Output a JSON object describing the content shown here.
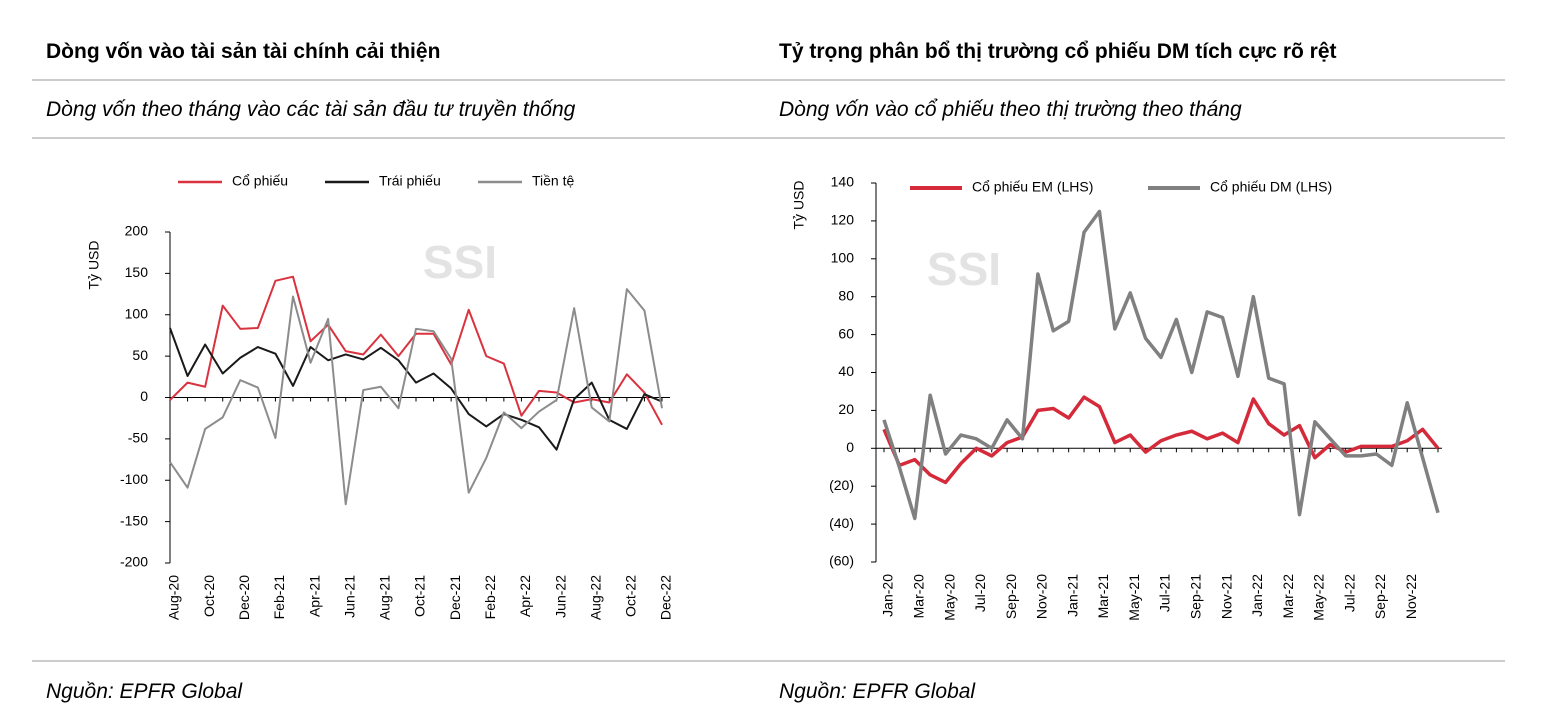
{
  "chart_data": [
    {
      "type": "line",
      "title": "Dòng vốn vào tài sản tài chính cải thiện",
      "subtitle": "Dòng vốn theo tháng vào các tài sản đầu tư truyền thống",
      "source": "Nguồn: EPFR Global",
      "watermark": "SSI",
      "y_label": "Tỷ USD",
      "legend": "top",
      "categories": [
        "Aug-20",
        null,
        "Oct-20",
        null,
        "Dec-20",
        null,
        "Feb-21",
        null,
        "Apr-21",
        null,
        "Jun-21",
        null,
        "Aug-21",
        null,
        "Oct-21",
        null,
        "Dec-21",
        null,
        "Feb-22",
        null,
        "Apr-22",
        null,
        "Jun-22",
        null,
        "Aug-22",
        null,
        "Oct-22",
        null,
        "Dec-22"
      ],
      "series": [
        {
          "name": "Cổ phiếu",
          "color": "#d9333f",
          "values": [
            -3,
            18,
            13,
            111,
            83,
            84,
            141,
            146,
            68,
            88,
            56,
            52,
            76,
            50,
            77,
            77,
            40,
            106,
            50,
            41,
            -22,
            8,
            6,
            -6,
            -2,
            -6,
            28,
            6,
            -33
          ]
        },
        {
          "name": "Trái phiếu",
          "color": "#1a1a1a",
          "values": [
            84,
            26,
            64,
            29,
            48,
            61,
            53,
            14,
            61,
            45,
            52,
            46,
            60,
            45,
            18,
            29,
            11,
            -20,
            -35,
            -20,
            -27,
            -36,
            -63,
            -2,
            18,
            -27,
            -38,
            4,
            -5
          ]
        },
        {
          "name": "Tiền tệ",
          "color": "#8c8c8c",
          "values": [
            -78,
            -109,
            -38,
            -24,
            21,
            12,
            -49,
            122,
            42,
            95,
            -129,
            9,
            13,
            -13,
            83,
            80,
            47,
            -115,
            -73,
            -18,
            -37,
            -17,
            -3,
            108,
            -12,
            -29,
            131,
            105,
            -13
          ]
        }
      ],
      "ylim": [
        -200,
        200
      ],
      "yticks": [
        -200,
        -150,
        -100,
        -50,
        0,
        50,
        100,
        150,
        200
      ]
    },
    {
      "type": "line",
      "title": "Tỷ trọng phân bổ thị trường cổ phiếu DM tích cực rõ rệt",
      "subtitle": "Dòng vốn vào cổ phiếu theo thị trường theo tháng",
      "source": "Nguồn: EPFR Global",
      "watermark": "SSI",
      "y_label": "Tỷ USD",
      "legend": "top",
      "categories": [
        "Jan-20",
        null,
        "Mar-20",
        null,
        "May-20",
        null,
        "Jul-20",
        null,
        "Sep-20",
        null,
        "Nov-20",
        null,
        "Jan-21",
        null,
        "Mar-21",
        null,
        "May-21",
        null,
        "Jul-21",
        null,
        "Sep-21",
        null,
        "Nov-21",
        null,
        "Jan-22",
        null,
        "Mar-22",
        null,
        "May-22",
        null,
        "Jul-22",
        null,
        "Sep-22",
        null,
        "Nov-22",
        null,
        null
      ],
      "series": [
        {
          "name": "Cổ phiếu EM (LHS)",
          "color": "#d42a3a",
          "values": [
            10,
            -9,
            -6,
            -14,
            -18,
            -8,
            0,
            -4,
            3,
            6,
            20,
            21,
            16,
            27,
            22,
            3,
            7,
            -2,
            4,
            7,
            9,
            5,
            8,
            3,
            26,
            13,
            7,
            12,
            -5,
            2,
            -2,
            1,
            1,
            1,
            4,
            10,
            0
          ]
        },
        {
          "name": "Cổ phiếu DM (LHS)",
          "color": "#808080",
          "values": [
            15,
            -10,
            -37,
            28,
            -3,
            7,
            5,
            0,
            15,
            5,
            92,
            62,
            67,
            114,
            125,
            63,
            82,
            58,
            48,
            68,
            40,
            72,
            69,
            38,
            80,
            37,
            34,
            -35,
            14,
            5,
            -4,
            -4,
            -3,
            -9,
            24,
            -5,
            -34
          ]
        }
      ],
      "ylim": [
        -60,
        140
      ],
      "yticks": [
        {
          "value": -60,
          "label": "(60)"
        },
        {
          "value": -40,
          "label": "(40)"
        },
        {
          "value": -20,
          "label": "(20)"
        },
        0,
        20,
        40,
        60,
        80,
        100,
        120,
        140
      ]
    }
  ]
}
